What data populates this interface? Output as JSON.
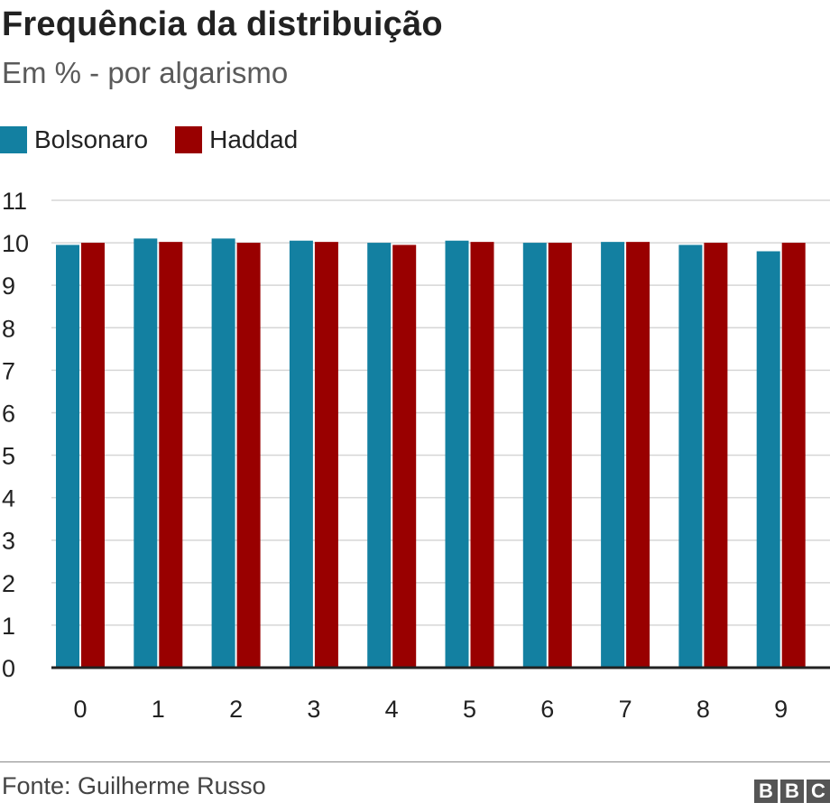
{
  "header": {
    "title": "Frequência da distribuição",
    "subtitle": "Em % - por algarismo"
  },
  "source": "Fonte: Guilherme Russo",
  "logo": {
    "letters": [
      "B",
      "B",
      "C"
    ]
  },
  "chart_data": {
    "type": "bar",
    "title": "Frequência da distribuição",
    "subtitle": "Em % - por algarismo",
    "xlabel": "",
    "ylabel": "",
    "categories": [
      "0",
      "1",
      "2",
      "3",
      "4",
      "5",
      "6",
      "7",
      "8",
      "9"
    ],
    "series": [
      {
        "name": "Bolsonaro",
        "color": "#1380A1",
        "values": [
          9.95,
          10.1,
          10.1,
          10.05,
          10.0,
          10.05,
          10.0,
          10.02,
          9.95,
          9.8
        ]
      },
      {
        "name": "Haddad",
        "color": "#990000",
        "values": [
          10.0,
          10.02,
          10.0,
          10.02,
          9.95,
          10.02,
          10.0,
          10.02,
          10.0,
          10.0
        ]
      }
    ],
    "ylim": [
      0,
      11
    ],
    "yticks": [
      0,
      1,
      2,
      3,
      4,
      5,
      6,
      7,
      8,
      9,
      10,
      11
    ],
    "grid": true,
    "legend_position": "top-left"
  }
}
